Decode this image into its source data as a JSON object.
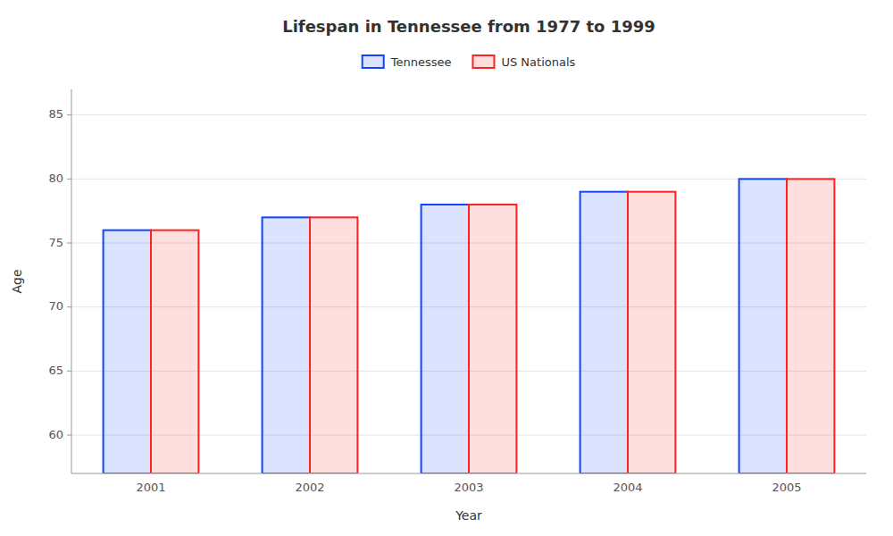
{
  "chart_data": {
    "type": "bar",
    "title": "Lifespan in Tennessee from 1977 to 1999",
    "xlabel": "Year",
    "ylabel": "Age",
    "categories": [
      "2001",
      "2002",
      "2003",
      "2004",
      "2005"
    ],
    "series": [
      {
        "name": "Tennessee",
        "color": "#1144ff",
        "values": [
          76,
          77,
          78,
          79,
          80
        ]
      },
      {
        "name": "US Nationals",
        "color": "#ff2222",
        "values": [
          76,
          77,
          78,
          79,
          80
        ]
      }
    ],
    "ylim": [
      57,
      87
    ],
    "yticks": [
      60,
      65,
      70,
      75,
      80,
      85
    ],
    "grid": true,
    "legend": "top"
  }
}
